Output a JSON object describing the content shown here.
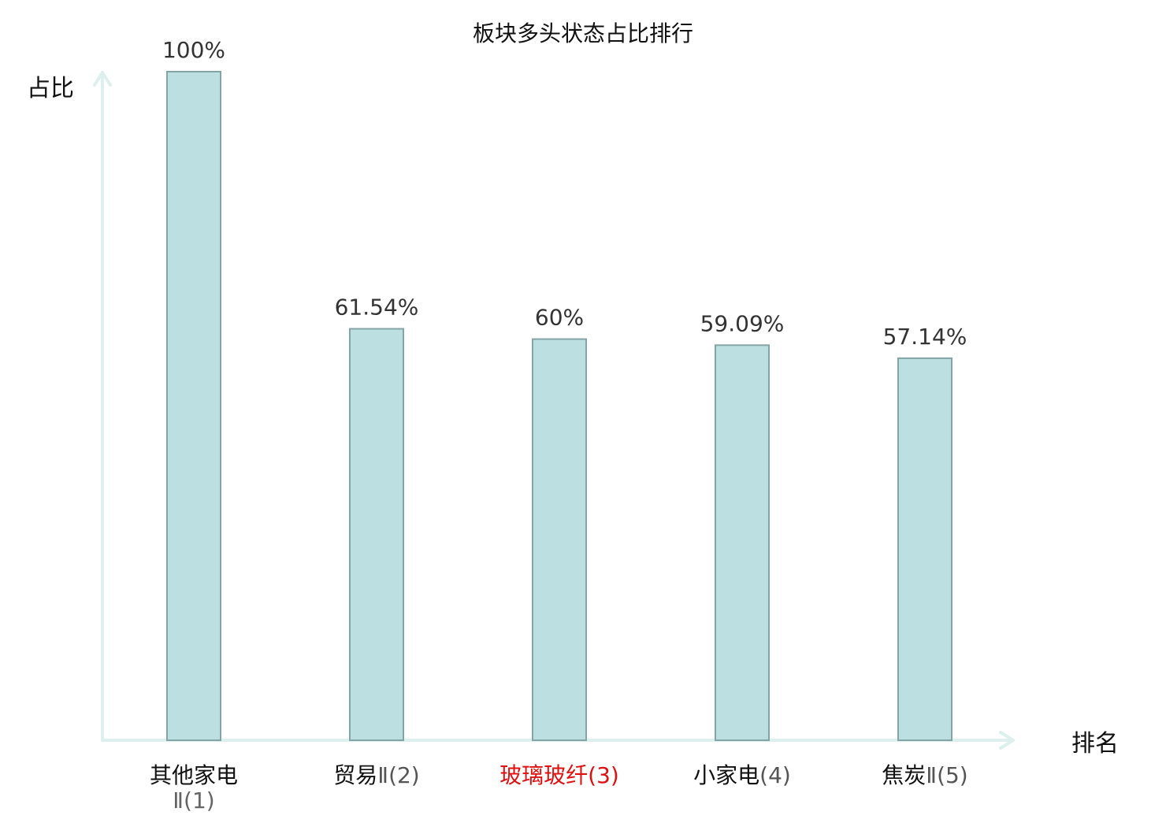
{
  "chart_data": {
    "type": "bar",
    "title": "板块多头状态占比排行",
    "xlabel": "排名",
    "ylabel": "占比",
    "ylim": [
      0,
      100
    ],
    "categories": [
      {
        "name": "其他家电",
        "suffix": "Ⅱ(1)",
        "highlight": false
      },
      {
        "name": "贸易",
        "suffix": "Ⅱ(2)",
        "highlight": false
      },
      {
        "name": "玻璃玻纤",
        "suffix": "(3)",
        "highlight": true
      },
      {
        "name": "小家电",
        "suffix": "(4)",
        "highlight": false
      },
      {
        "name": "焦炭",
        "suffix": "Ⅱ(5)",
        "highlight": false
      }
    ],
    "values": [
      100,
      61.54,
      60,
      59.09,
      57.14
    ],
    "value_labels": [
      "100%",
      "61.54%",
      "60%",
      "59.09%",
      "57.14%"
    ],
    "grid": false,
    "legend": "none"
  },
  "colors": {
    "bar_fill": "#bce0e2",
    "bar_stroke": "#84a4a6",
    "axis": "#ddf0ed",
    "text": "#111111",
    "value_text": "#333333",
    "rank_text": "#555555",
    "highlight": "#e01010"
  }
}
